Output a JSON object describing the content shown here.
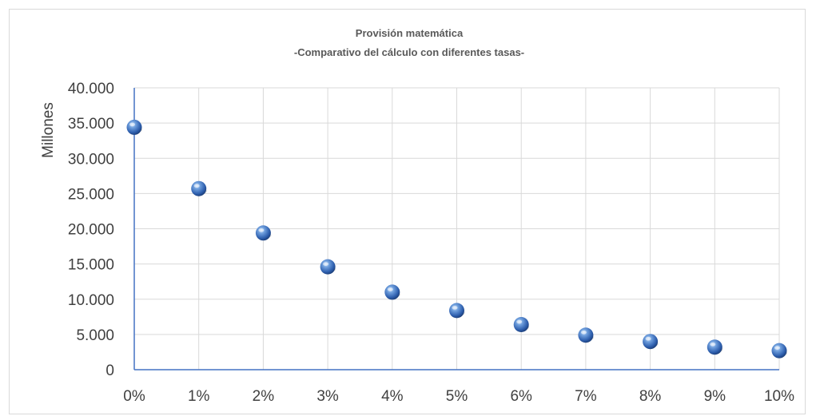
{
  "chart_data": {
    "type": "scatter",
    "title": "Provisión matemática",
    "subtitle": "-Comparativo del cálculo con diferentes tasas-",
    "xlabel": "",
    "ylabel": "Millones",
    "x": [
      "0%",
      "1%",
      "2%",
      "3%",
      "4%",
      "5%",
      "6%",
      "7%",
      "8%",
      "9%",
      "10%"
    ],
    "series": [
      {
        "values": [
          34400,
          25700,
          19400,
          14600,
          11000,
          8400,
          6400,
          4900,
          4000,
          3200,
          2700
        ]
      }
    ],
    "y_ticks": [
      "0",
      "5.000",
      "10.000",
      "15.000",
      "20.000",
      "25.000",
      "30.000",
      "35.000",
      "40.000"
    ],
    "ylim": [
      0,
      40000
    ],
    "grid": true,
    "legend": "none",
    "colors": {
      "marker": "#2e62b0",
      "marker_highlight": "#9cc3f0",
      "axis": "#4472c4",
      "grid": "#d9d9d9"
    }
  }
}
